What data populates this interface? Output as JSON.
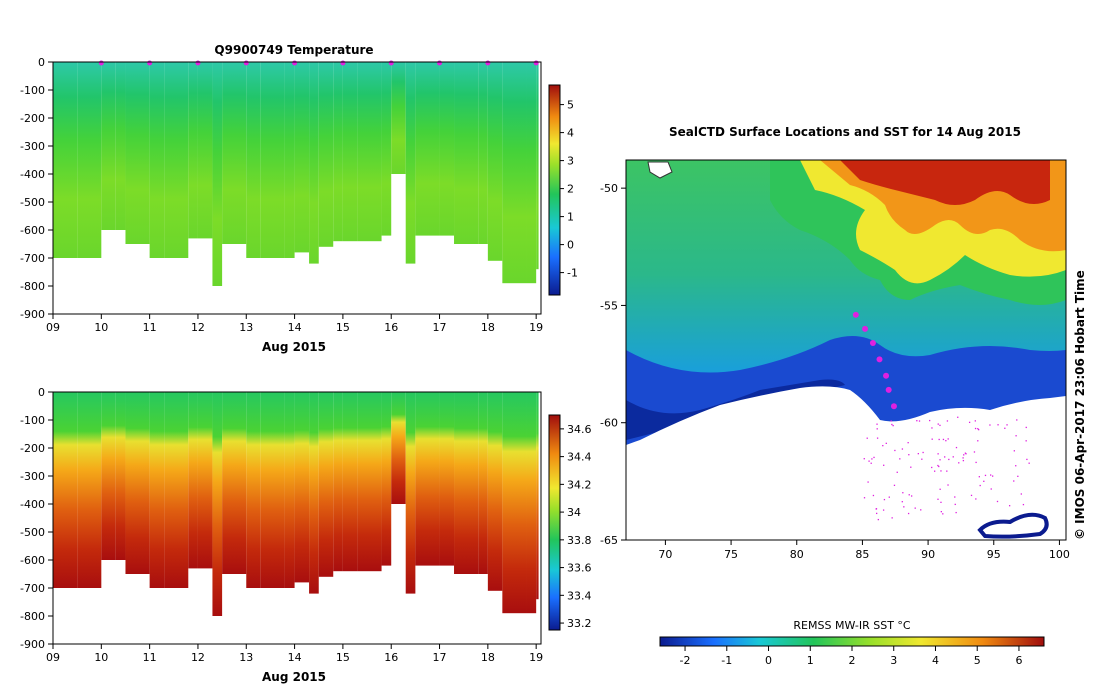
{
  "temperature_panel": {
    "title": "Q9900749  Temperature",
    "xlabel": "Aug 2015",
    "x_ticks": [
      "09",
      "10",
      "11",
      "12",
      "13",
      "14",
      "15",
      "16",
      "17",
      "18",
      "19"
    ],
    "y_ticks": [
      "0",
      "-100",
      "-200",
      "-300",
      "-400",
      "-500",
      "-600",
      "-700",
      "-800",
      "-900"
    ],
    "colorbar_ticks": [
      "5",
      "4",
      "3",
      "2",
      "1",
      "0",
      "-1"
    ]
  },
  "salinity_panel": {
    "title": "",
    "xlabel": "Aug 2015",
    "x_ticks": [
      "09",
      "10",
      "11",
      "12",
      "13",
      "14",
      "15",
      "16",
      "17",
      "18",
      "19"
    ],
    "y_ticks": [
      "0",
      "-100",
      "-200",
      "-300",
      "-400",
      "-500",
      "-600",
      "-700",
      "-800",
      "-900"
    ],
    "colorbar_ticks": [
      "34.6",
      "34.4",
      "34.2",
      "34",
      "33.8",
      "33.6",
      "33.4",
      "33.2"
    ]
  },
  "map_panel": {
    "title": "SealCTD Surface Locations and SST for 14 Aug 2015",
    "x_ticks": [
      "70",
      "75",
      "80",
      "85",
      "90",
      "95",
      "100"
    ],
    "y_ticks": [
      "-50",
      "-55",
      "-60",
      "-65"
    ],
    "colorbar_label": "REMSS MW-IR SST °C",
    "colorbar_ticks": [
      "-2",
      "-1",
      "0",
      "1",
      "2",
      "3",
      "4",
      "5",
      "6"
    ],
    "credit": "© IMOS 06-Apr-2017 23:06 Hobart Time"
  },
  "chart_data": [
    {
      "type": "heatmap",
      "title": "Q9900749  Temperature",
      "xlabel": "Aug 2015",
      "ylabel": "",
      "xlim": [
        9,
        19.1
      ],
      "ylim": [
        -900,
        0
      ],
      "colorbar_range": [
        -1.8,
        5.7
      ],
      "colors": {
        "cold": "#0b1b8f",
        "cool": "#1a9fff",
        "mid": "#22c55a",
        "warm": "#e8e83a",
        "hot": "#b01010"
      },
      "profile_dates": [
        9.0,
        9.5,
        10.0,
        10.3,
        10.5,
        11.0,
        11.3,
        11.8,
        12.0,
        12.3,
        12.5,
        13.0,
        13.3,
        13.8,
        14.0,
        14.3,
        14.5,
        14.8,
        15.0,
        15.3,
        15.8,
        16.0,
        16.3,
        16.5,
        17.0,
        17.3,
        17.8,
        18.0,
        18.3,
        18.8,
        19.0
      ],
      "profile_max_depth": [
        -700,
        -700,
        -600,
        -600,
        -650,
        -700,
        -700,
        -630,
        -630,
        -800,
        -650,
        -700,
        -700,
        -700,
        -680,
        -720,
        -660,
        -640,
        -640,
        -640,
        -620,
        -400,
        -720,
        -620,
        -620,
        -650,
        -650,
        -710,
        -790,
        -790,
        -740
      ],
      "surface_marker_dates": [
        10.0,
        11.0,
        12.0,
        13.0,
        14.0,
        15.0,
        16.0,
        17.0,
        18.0,
        19.0
      ]
    },
    {
      "type": "heatmap",
      "title": "",
      "xlabel": "Aug 2015",
      "ylabel": "",
      "xlim": [
        9,
        19.1
      ],
      "ylim": [
        -900,
        0
      ],
      "colorbar_range": [
        33.15,
        34.7
      ],
      "profile_dates": [
        9.0,
        9.5,
        10.0,
        10.3,
        10.5,
        11.0,
        11.3,
        11.8,
        12.0,
        12.3,
        12.5,
        13.0,
        13.3,
        13.8,
        14.0,
        14.3,
        14.5,
        14.8,
        15.0,
        15.3,
        15.8,
        16.0,
        16.3,
        16.5,
        17.0,
        17.3,
        17.8,
        18.0,
        18.3,
        18.8,
        19.0
      ],
      "profile_max_depth": [
        -700,
        -700,
        -600,
        -600,
        -650,
        -700,
        -700,
        -630,
        -630,
        -800,
        -650,
        -700,
        -700,
        -700,
        -680,
        -720,
        -660,
        -640,
        -640,
        -640,
        -620,
        -400,
        -720,
        -620,
        -620,
        -650,
        -650,
        -710,
        -790,
        -790,
        -740
      ]
    },
    {
      "type": "heatmap",
      "title": "SealCTD Surface Locations and SST for 14 Aug 2015",
      "xlim": [
        67,
        100.5
      ],
      "ylim": [
        -65,
        -48.8
      ],
      "colorbar_label": "REMSS MW-IR SST °C",
      "colorbar_range": [
        -2.6,
        6.6
      ],
      "seal_track": [
        [
          84.5,
          -55.4
        ],
        [
          85.2,
          -56.0
        ],
        [
          85.8,
          -56.6
        ],
        [
          86.3,
          -57.3
        ],
        [
          86.8,
          -58.0
        ],
        [
          87.0,
          -58.6
        ],
        [
          87.4,
          -59.3
        ]
      ]
    }
  ]
}
